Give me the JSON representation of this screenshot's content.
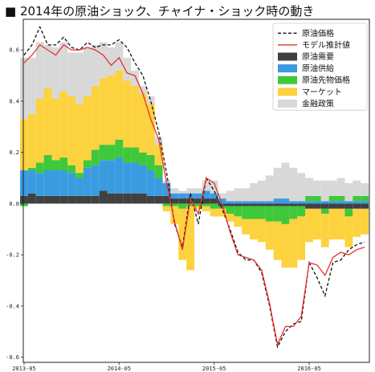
{
  "chart_data": {
    "type": "bar",
    "title": "■ 2014年の原油ショック、チャイナ・ショック時の動き",
    "xlabel": "",
    "ylabel": "",
    "ylim": [
      -0.62,
      0.72
    ],
    "yticks": [
      -0.6,
      -0.4,
      -0.2,
      0.0,
      0.2,
      0.4,
      0.6
    ],
    "ytick_labels": [
      "-0.6",
      "-0.4",
      "-0.2",
      "0.0",
      "0.2",
      "0.4",
      "0.6"
    ],
    "x_start": "2013-05",
    "x_end": "2016-12",
    "xticks": [
      "2013-05",
      "2014-05",
      "2015-05",
      "2016-05"
    ],
    "stacked": true,
    "grid": false,
    "legend_position": "top-right",
    "months": [
      "2013-05",
      "2013-06",
      "2013-07",
      "2013-08",
      "2013-09",
      "2013-10",
      "2013-11",
      "2013-12",
      "2014-01",
      "2014-02",
      "2014-03",
      "2014-04",
      "2014-05",
      "2014-06",
      "2014-07",
      "2014-08",
      "2014-09",
      "2014-10",
      "2014-11",
      "2014-12",
      "2015-01",
      "2015-02",
      "2015-03",
      "2015-04",
      "2015-05",
      "2015-06",
      "2015-07",
      "2015-08",
      "2015-09",
      "2015-10",
      "2015-11",
      "2015-12",
      "2016-01",
      "2016-02",
      "2016-03",
      "2016-04",
      "2016-05",
      "2016-06",
      "2016-07",
      "2016-08",
      "2016-09",
      "2016-10",
      "2016-11",
      "2016-12"
    ],
    "series": [
      {
        "name": "原油価格",
        "kind": "line",
        "style": "dashed",
        "color": "#111111",
        "values": [
          0.58,
          0.62,
          0.69,
          0.62,
          0.62,
          0.65,
          0.61,
          0.6,
          0.63,
          0.61,
          0.62,
          0.62,
          0.64,
          0.61,
          0.55,
          0.5,
          0.4,
          0.28,
          0.12,
          -0.08,
          -0.17,
          0.04,
          -0.08,
          0.1,
          0.05,
          -0.02,
          -0.1,
          -0.19,
          -0.22,
          -0.22,
          -0.27,
          -0.4,
          -0.56,
          -0.5,
          -0.47,
          -0.46,
          -0.23,
          -0.29,
          -0.36,
          -0.23,
          -0.22,
          -0.18,
          -0.16,
          -0.15
        ]
      },
      {
        "name": "モデル推計値",
        "kind": "line",
        "style": "solid",
        "color": "#e8302a",
        "values": [
          0.55,
          0.58,
          0.62,
          0.6,
          0.58,
          0.62,
          0.6,
          0.6,
          0.61,
          0.6,
          0.58,
          0.54,
          0.57,
          0.51,
          0.5,
          0.43,
          0.33,
          0.25,
          0.08,
          -0.07,
          -0.18,
          0.02,
          -0.04,
          0.1,
          0.08,
          0.0,
          -0.11,
          -0.2,
          -0.21,
          -0.22,
          -0.26,
          -0.39,
          -0.55,
          -0.48,
          -0.48,
          -0.44,
          -0.23,
          -0.24,
          -0.28,
          -0.21,
          -0.19,
          -0.2,
          -0.18,
          -0.17
        ]
      },
      {
        "name": "原油需要",
        "kind": "bar",
        "color": "#404040",
        "values": [
          0.03,
          0.04,
          0.03,
          0.03,
          0.03,
          0.03,
          0.03,
          0.03,
          0.03,
          0.03,
          0.05,
          0.04,
          0.04,
          0.04,
          0.04,
          0.04,
          0.03,
          0.03,
          0.03,
          0.02,
          0.02,
          0.02,
          0.02,
          0.02,
          0.02,
          -0.01,
          -0.01,
          -0.01,
          -0.01,
          -0.01,
          -0.01,
          -0.01,
          -0.01,
          -0.01,
          -0.01,
          -0.01,
          -0.02,
          -0.02,
          -0.02,
          -0.02,
          -0.02,
          -0.02,
          -0.02,
          -0.02
        ]
      },
      {
        "name": "原油供給",
        "kind": "bar",
        "color": "#3b9be0",
        "values": [
          0.1,
          0.09,
          0.09,
          0.1,
          0.1,
          0.1,
          0.09,
          0.07,
          0.11,
          0.12,
          0.12,
          0.13,
          0.14,
          0.12,
          0.12,
          0.11,
          0.1,
          0.07,
          0.05,
          0.02,
          0.02,
          0.02,
          0.02,
          0.03,
          0.02,
          0.02,
          0.01,
          0.01,
          0.01,
          0.01,
          0.01,
          0.01,
          0.02,
          0.02,
          0.01,
          0.01,
          0.01,
          0.01,
          0.01,
          0.01,
          0.01,
          0.01,
          0.01,
          0.01
        ]
      },
      {
        "name": "原油先物価格",
        "kind": "bar",
        "color": "#3ec83a",
        "values": [
          -0.01,
          0.01,
          0.04,
          0.06,
          0.04,
          0.05,
          0.03,
          0.02,
          0.03,
          0.06,
          0.06,
          0.06,
          0.07,
          0.06,
          0.06,
          0.05,
          0.06,
          0.05,
          -0.01,
          -0.01,
          -0.02,
          -0.01,
          -0.01,
          -0.01,
          -0.02,
          -0.01,
          -0.03,
          -0.04,
          -0.05,
          -0.05,
          -0.05,
          -0.06,
          -0.06,
          -0.07,
          -0.05,
          -0.04,
          0.02,
          0.02,
          -0.02,
          0.02,
          0.02,
          -0.03,
          0.02,
          0.02
        ]
      },
      {
        "name": "マーケット",
        "kind": "bar",
        "color": "#fcd23e",
        "values": [
          0.2,
          0.21,
          0.25,
          0.26,
          0.24,
          0.26,
          0.27,
          0.27,
          0.25,
          0.25,
          0.26,
          0.27,
          0.27,
          0.26,
          0.24,
          0.23,
          0.2,
          0.08,
          -0.02,
          -0.07,
          -0.2,
          -0.25,
          -0.01,
          -0.02,
          -0.03,
          -0.03,
          -0.03,
          -0.04,
          -0.06,
          -0.08,
          -0.09,
          -0.11,
          -0.15,
          -0.17,
          -0.19,
          -0.17,
          -0.13,
          -0.12,
          -0.13,
          -0.12,
          -0.12,
          -0.12,
          -0.11,
          -0.1
        ]
      },
      {
        "name": "金融政策",
        "kind": "bar",
        "color": "#d8d8d8",
        "values": [
          0.24,
          0.22,
          0.22,
          0.17,
          0.2,
          0.19,
          0.17,
          0.2,
          0.19,
          0.16,
          0.14,
          0.11,
          0.11,
          0.09,
          0.06,
          0.03,
          0.03,
          0.03,
          0.01,
          0.02,
          0.01,
          0.02,
          0.02,
          0.04,
          0.05,
          0.02,
          0.04,
          0.05,
          0.05,
          0.07,
          0.08,
          0.1,
          0.12,
          0.14,
          0.13,
          0.11,
          0.07,
          0.06,
          0.08,
          0.06,
          0.07,
          0.07,
          0.06,
          0.05
        ]
      }
    ]
  }
}
